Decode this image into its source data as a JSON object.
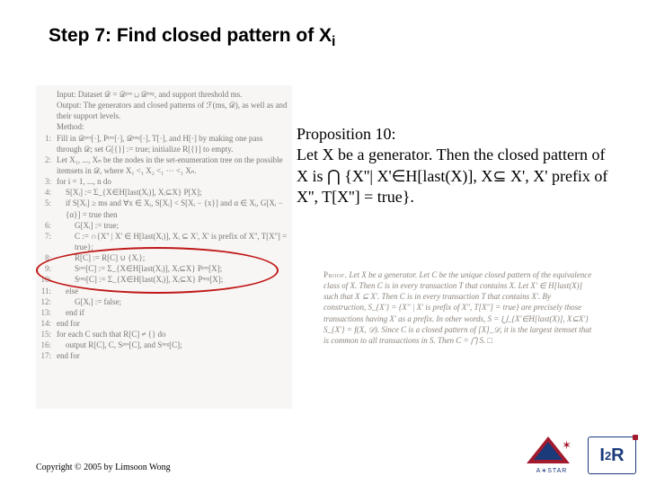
{
  "title_prefix": "Step 7: Find closed pattern of X",
  "title_sub": "i",
  "algorithm": {
    "input": "Input: Dataset 𝒟 = 𝒟ᵖᵒˢ ⊔ 𝒟ⁿᵉᵍ, and support threshold ms.",
    "output": "Output: The generators and closed patterns of ℱ(ms, 𝒟), as well as and their support levels.",
    "method_label": "Method:",
    "lines": [
      "Fill in 𝒟ᵖᵒˢ[·], Pᵖᵒˢ[·], 𝒟ⁿᵉᵍ[·], T[·], and H[·] by making one pass through 𝒟; set G[{}] := true; initialize R[{}] to empty.",
      "Let X₁, ..., Xₙ be the nodes in the set-enumeration tree on the possible itemsets in 𝒟, where X₁ <₁ X₂ <₁ ··· <₁ Xₙ.",
      "for i = 1, ..., n do",
      "S[Xᵢ] := Σ_{X∈H[last(Xᵢ)], Xᵢ⊆X} P[X];",
      "if S[Xᵢ] ≥ ms and ∀x ∈ Xᵢ, S[Xᵢ] < S[Xᵢ − {x}] and α ∈ Xᵢ, G[Xᵢ − {α}] = true then",
      "G[Xᵢ] := true;",
      "C := ∩{X'' | X' ∈ H[last(Xᵢ)], Xᵢ ⊆ X', X' is prefix of X'', T[X''] = true};",
      "R[C] := R[C] ∪ {Xᵢ};",
      "Sᵖᵒˢ[C] := Σ_{X∈H[last(Xᵢ)], Xᵢ⊆X} Pᵖᵒˢ[X];",
      "Sⁿᵉᵍ[C] := Σ_{X∈H[last(Xᵢ)], Xᵢ⊆X} Pⁿᵉᵍ[X];",
      "else",
      "G[Xᵢ] := false;",
      "end if",
      "end for",
      "for each C such that R[C] ≠ {} do",
      "output R[C], C, Sᵖᵒˢ[C], and Sⁿᵉᵍ[C];",
      "end for"
    ]
  },
  "proposition": {
    "heading": "Proposition 10:",
    "body": "Let X be a generator. Then the closed pattern of X is ⋂ {X''| X'∈H[last(X)], X⊆ X', X' prefix of X'', T[X''] = true}."
  },
  "proof": {
    "label": "Proof.",
    "body": "Let X be a generator. Let C be the unique closed pattern of the equivalence class of X. Then C is in every transaction T that contains X. Let X' ∈ H[last(X)] such that X ⊆ X'. Then C is in every transaction T that contains X'. By construction, S_{X'} = {X'' | X' is prefix of X'', T[X''] = true} are precisely those transactions having X' as a prefix. In other words, S = ⋃_{X'∈H[last(X)], X⊆X'} S_{X'} = f(X, 𝒟). Since C is a closed pattern of [X]_𝒟, it is the largest itemset that is common to all transactions in S. Then C = ⋂ S.   □"
  },
  "copyright": "Copyright © 2005 by Limsoon Wong",
  "logos": {
    "astar_text": "A∗STAR",
    "i2r_text_i": "I",
    "i2r_text_2": "2",
    "i2r_text_r": "R"
  },
  "colors": {
    "highlight_ellipse": "#c01818",
    "brand_red": "#a31a2e",
    "brand_blue": "#1a3a7a",
    "algo_text": "#7a7570",
    "proof_text": "#8a827a"
  }
}
